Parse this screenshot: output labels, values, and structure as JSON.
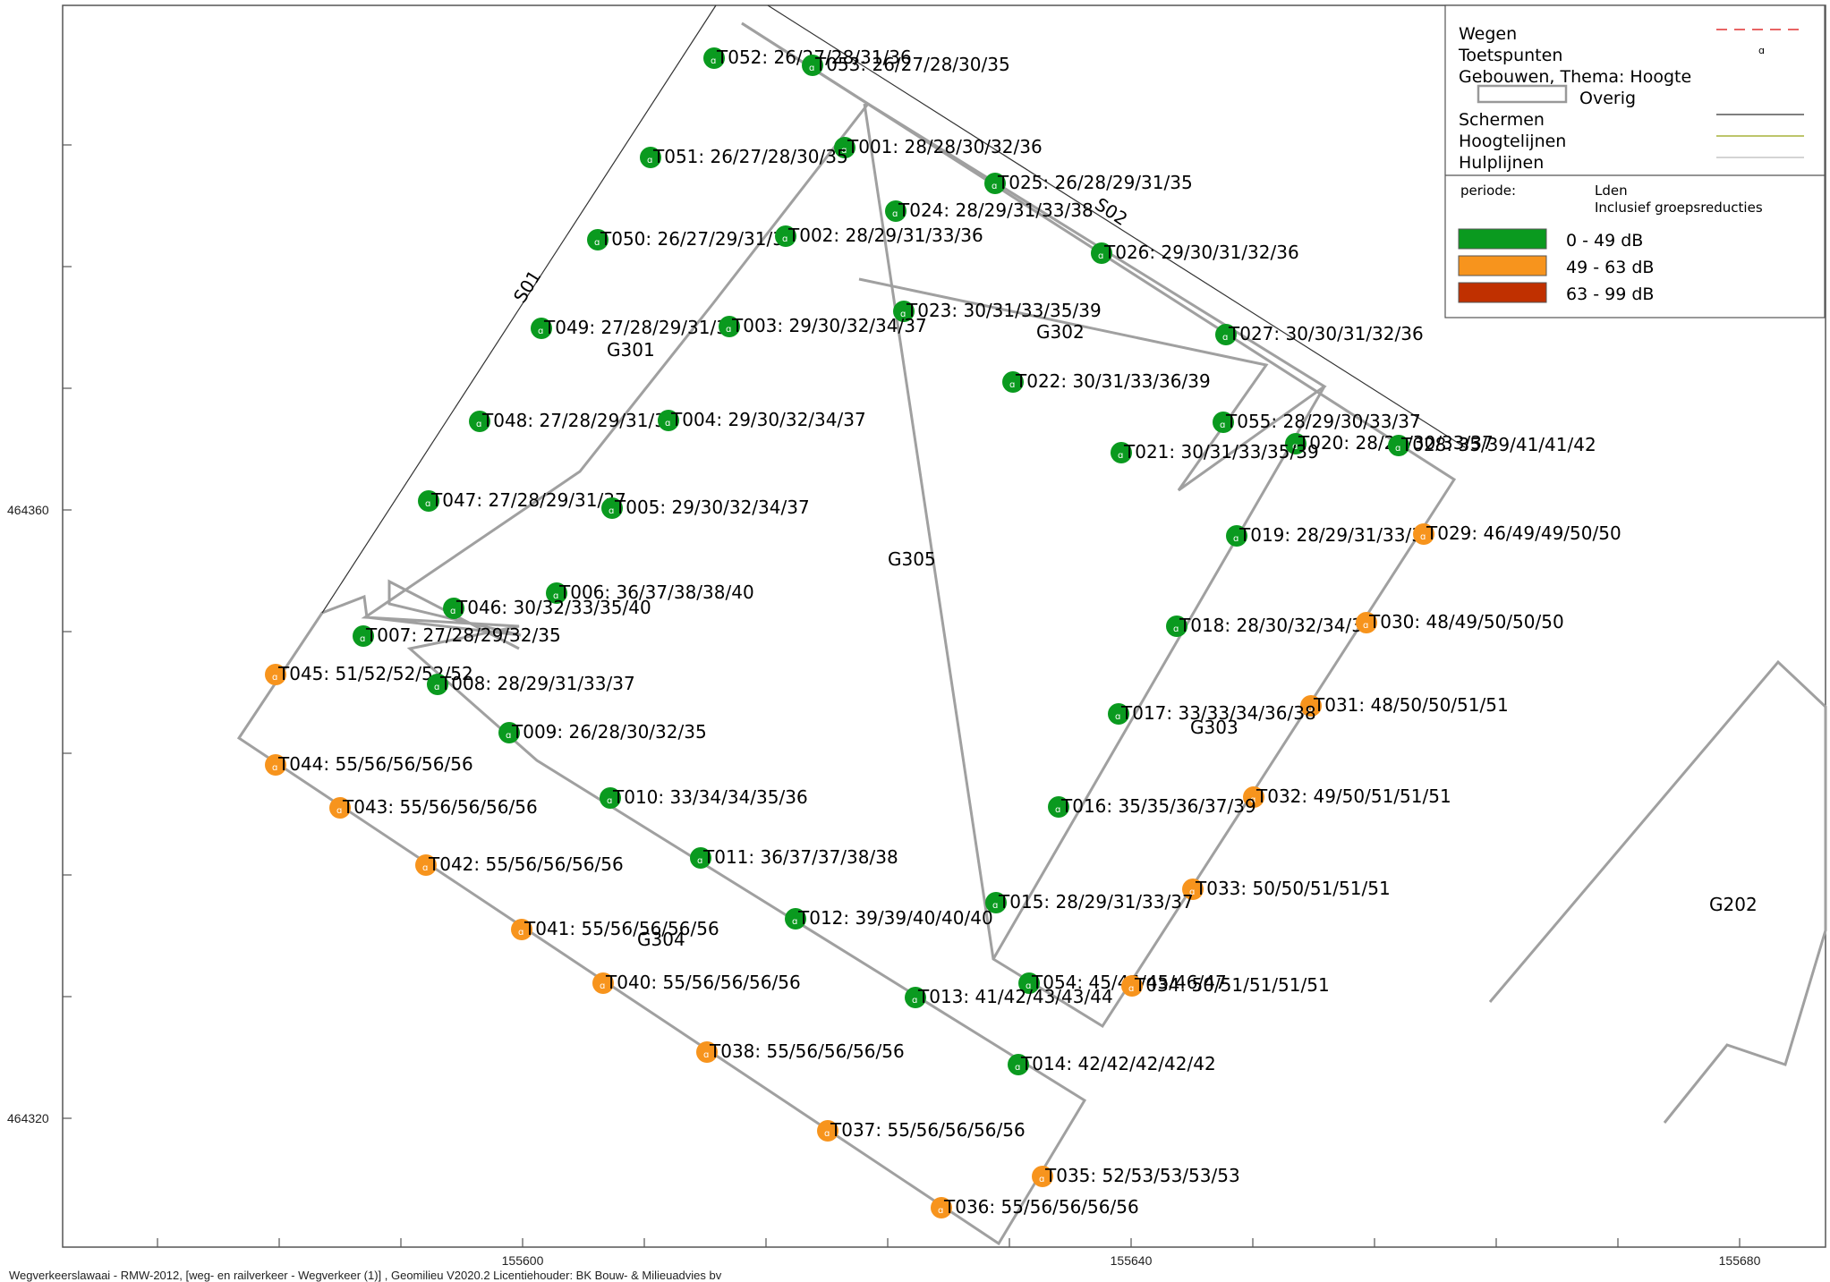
{
  "footer": "Wegverkeerslawaai - RMW-2012, [weg- en railverkeer - Wegverkeer (1)] , Geomilieu V2020.2 Licentiehouder: BK Bouw- & Milieuadvies bv",
  "axes": {
    "x_ticks": [
      "155600",
      "155640",
      "155680"
    ],
    "y_ticks": [
      "464360",
      "464320"
    ]
  },
  "legend": {
    "items": [
      {
        "label": "Wegen",
        "symbol": "dashed-red-line"
      },
      {
        "label": "Toetspunten",
        "symbol": "point-icon"
      },
      {
        "label": "Gebouwen, Thema: Hoogte",
        "symbol": ""
      },
      {
        "label": "Overig",
        "symbol": "building-box"
      },
      {
        "label": "Schermen",
        "symbol": "dark-line"
      },
      {
        "label": "Hoogtelijnen",
        "symbol": "olive-line"
      },
      {
        "label": "Hulplijnen",
        "symbol": "light-line"
      }
    ],
    "periode_label": "periode:",
    "periode_value": "Lden",
    "periode_note": "Inclusief groepsreducties",
    "classes": [
      {
        "label": "0 - 49 dB",
        "color": "#0a9a1f"
      },
      {
        "label": "49 - 63 dB",
        "color": "#f7941d"
      },
      {
        "label": "63 - 99 dB",
        "color": "#c03000"
      }
    ]
  },
  "screens": [
    {
      "label": "S01"
    },
    {
      "label": "S02"
    }
  ],
  "buildings": [
    {
      "label": "G301"
    },
    {
      "label": "G302"
    },
    {
      "label": "G303"
    },
    {
      "label": "G304"
    },
    {
      "label": "G305"
    },
    {
      "label": "G202"
    }
  ],
  "points": [
    {
      "id": "T052",
      "values": "26/27/28/31/36",
      "class": 0
    },
    {
      "id": "T053",
      "values": "26/27/28/30/35",
      "class": 0
    },
    {
      "id": "T001",
      "values": "28/28/30/32/36",
      "class": 0
    },
    {
      "id": "T051",
      "values": "26/27/28/30/35",
      "class": 0
    },
    {
      "id": "T025",
      "values": "26/28/29/31/35",
      "class": 0
    },
    {
      "id": "T024",
      "values": "28/29/31/33/38",
      "class": 0
    },
    {
      "id": "T050",
      "values": "26/27/29/31/36",
      "class": 0
    },
    {
      "id": "T002",
      "values": "28/29/31/33/36",
      "class": 0
    },
    {
      "id": "T026",
      "values": "29/30/31/32/36",
      "class": 0
    },
    {
      "id": "T023",
      "values": "30/31/33/35/39",
      "class": 0
    },
    {
      "id": "T049",
      "values": "27/28/29/31/36",
      "class": 0
    },
    {
      "id": "T003",
      "values": "29/30/32/34/37",
      "class": 0
    },
    {
      "id": "T027",
      "values": "30/30/31/32/36",
      "class": 0
    },
    {
      "id": "T022",
      "values": "30/31/33/36/39",
      "class": 0
    },
    {
      "id": "T048",
      "values": "27/28/29/31/37",
      "class": 0
    },
    {
      "id": "T004",
      "values": "29/30/32/34/37",
      "class": 0
    },
    {
      "id": "T055",
      "values": "28/29/30/33/37",
      "class": 0
    },
    {
      "id": "T020",
      "values": "28/29/30/33/37",
      "class": 0
    },
    {
      "id": "T028",
      "values": "35/39/41/41/42",
      "class": 0
    },
    {
      "id": "T021",
      "values": "30/31/33/35/39",
      "class": 0
    },
    {
      "id": "T047",
      "values": "27/28/29/31/37",
      "class": 0
    },
    {
      "id": "T005",
      "values": "29/30/32/34/37",
      "class": 0
    },
    {
      "id": "T019",
      "values": "28/29/31/33/36",
      "class": 0
    },
    {
      "id": "T029",
      "values": "46/49/49/50/50",
      "class": 1
    },
    {
      "id": "T006",
      "values": "36/37/38/38/40",
      "class": 0
    },
    {
      "id": "T046",
      "values": "30/32/33/35/40",
      "class": 0
    },
    {
      "id": "T018",
      "values": "28/30/32/34/37",
      "class": 0
    },
    {
      "id": "T030",
      "values": "48/49/50/50/50",
      "class": 1
    },
    {
      "id": "T007",
      "values": "27/28/29/32/35",
      "class": 0
    },
    {
      "id": "T045",
      "values": "51/52/52/52/52",
      "class": 1
    },
    {
      "id": "T008",
      "values": "28/29/31/33/37",
      "class": 0
    },
    {
      "id": "T031",
      "values": "48/50/50/51/51",
      "class": 1
    },
    {
      "id": "T017",
      "values": "33/33/34/36/38",
      "class": 0
    },
    {
      "id": "T009",
      "values": "26/28/30/32/35",
      "class": 0
    },
    {
      "id": "T044",
      "values": "55/56/56/56/56",
      "class": 1
    },
    {
      "id": "T043",
      "values": "55/56/56/56/56",
      "class": 1
    },
    {
      "id": "T010",
      "values": "33/34/34/35/36",
      "class": 0
    },
    {
      "id": "T032",
      "values": "49/50/51/51/51",
      "class": 1
    },
    {
      "id": "T016",
      "values": "35/35/36/37/39",
      "class": 0
    },
    {
      "id": "T011",
      "values": "36/37/37/38/38",
      "class": 0
    },
    {
      "id": "T042",
      "values": "55/56/56/56/56",
      "class": 1
    },
    {
      "id": "T033",
      "values": "50/50/51/51/51",
      "class": 1
    },
    {
      "id": "T015",
      "values": "28/29/31/33/37",
      "class": 0
    },
    {
      "id": "T012",
      "values": "39/39/40/40/40",
      "class": 0
    },
    {
      "id": "T041",
      "values": "55/56/56/56/56",
      "class": 1
    },
    {
      "id": "T054",
      "values": "45/45/45/46/47",
      "class": 0
    },
    {
      "id": "T034",
      "values": "50/51/51/51/51",
      "class": 1
    },
    {
      "id": "T040",
      "values": "55/56/56/56/56",
      "class": 1
    },
    {
      "id": "T013",
      "values": "41/42/43/43/44",
      "class": 0
    },
    {
      "id": "T038",
      "values": "55/56/56/56/56",
      "class": 1
    },
    {
      "id": "T014",
      "values": "42/42/42/42/42",
      "class": 0
    },
    {
      "id": "T037",
      "values": "55/56/56/56/56",
      "class": 1
    },
    {
      "id": "T035",
      "values": "52/53/53/53/53",
      "class": 1
    },
    {
      "id": "T036",
      "values": "55/56/56/56/56",
      "class": 1
    }
  ]
}
